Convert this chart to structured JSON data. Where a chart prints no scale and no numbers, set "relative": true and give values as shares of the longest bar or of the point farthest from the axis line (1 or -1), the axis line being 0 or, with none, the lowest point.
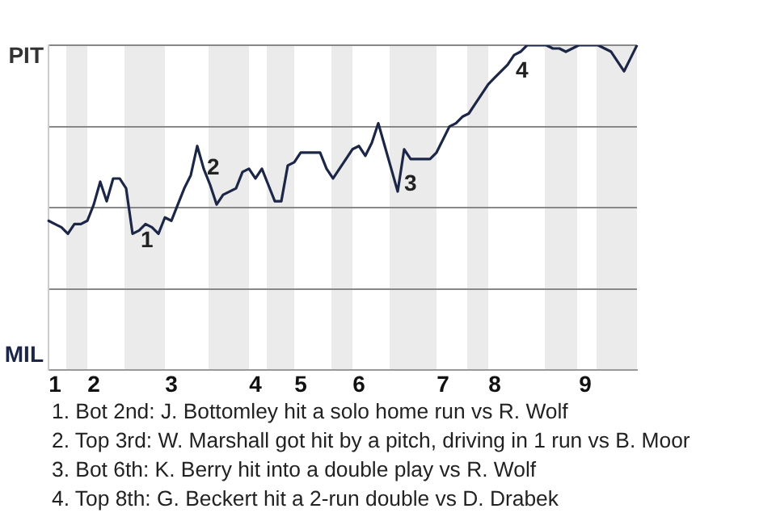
{
  "chart_data": {
    "type": "line",
    "relative": true,
    "categories": [
      null,
      "1",
      null,
      null,
      null,
      null,
      null,
      "2",
      null,
      null,
      null,
      null,
      null,
      null,
      null,
      null,
      null,
      null,
      null,
      "3",
      null,
      null,
      null,
      null,
      null,
      null,
      null,
      null,
      null,
      null,
      null,
      null,
      "4",
      null,
      null,
      null,
      null,
      null,
      null,
      "5",
      null,
      null,
      null,
      null,
      null,
      null,
      null,
      null,
      "6",
      null,
      null,
      null,
      null,
      null,
      null,
      null,
      null,
      null,
      null,
      null,
      null,
      "7",
      null,
      null,
      null,
      null,
      null,
      null,
      null,
      "8",
      null,
      null,
      null,
      null,
      null,
      null,
      null,
      null,
      null,
      null,
      null,
      null,
      null,
      "9",
      null,
      null,
      null,
      null,
      null,
      null,
      null,
      null
    ],
    "series": [
      {
        "color": "#1c2747",
        "values": [
          0.46,
          0.45,
          0.44,
          0.42,
          0.45,
          0.45,
          0.46,
          0.51,
          0.58,
          0.52,
          0.59,
          0.59,
          0.56,
          0.42,
          0.43,
          0.45,
          0.44,
          0.42,
          0.47,
          0.46,
          0.51,
          0.56,
          0.6,
          0.69,
          0.62,
          0.57,
          0.51,
          0.54,
          0.55,
          0.56,
          0.61,
          0.62,
          0.59,
          0.62,
          0.57,
          0.52,
          0.52,
          0.63,
          0.64,
          0.67,
          0.67,
          0.67,
          0.67,
          0.62,
          0.59,
          0.62,
          0.65,
          0.68,
          0.69,
          0.66,
          0.7,
          0.76,
          0.69,
          0.62,
          0.55,
          0.68,
          0.65,
          0.65,
          0.65,
          0.65,
          0.67,
          0.71,
          0.75,
          0.76,
          0.78,
          0.79,
          0.82,
          0.85,
          0.88,
          0.9,
          0.92,
          0.94,
          0.97,
          0.98,
          1,
          1,
          1,
          1,
          0.99,
          0.99,
          0.98,
          0.99,
          1,
          1,
          1,
          1,
          0.99,
          0.98,
          0.95,
          0.92,
          0.96,
          1
        ]
      }
    ],
    "grid": "y",
    "annotations": [
      "PIT",
      "MIL",
      "1",
      "2",
      "3",
      "4",
      "1. Bot 2nd: J. Bottomley hit a solo home run vs R. Wolf",
      "2. Top 3rd: W. Marshall got hit by a pitch, driving in 1 run vs B. Moor",
      "3. Bot 6th: K. Berry hit into a double play vs R. Wolf",
      "4. Top 8th: G. Beckert hit a 2-run double vs D. Drabek"
    ]
  }
}
